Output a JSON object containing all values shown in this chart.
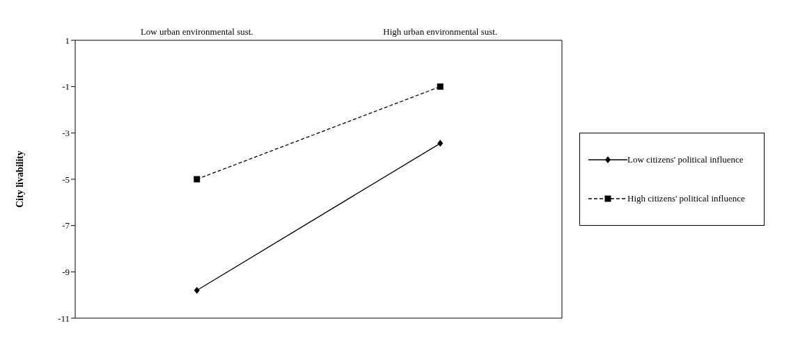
{
  "chart_data": {
    "type": "line",
    "ylabel": "City livability",
    "categories": [
      "Low urban environmental sust.",
      "High urban environmental sust."
    ],
    "series": [
      {
        "name": "Low citizens' political influence",
        "color": "#000000",
        "values": [
          -9.8,
          -3.45
        ],
        "marker": "diamond",
        "line_style": "solid"
      },
      {
        "name": "High citizens' political influence",
        "color": "#000000",
        "values": [
          -5,
          -1
        ],
        "marker": "square",
        "line_style": "dashed"
      }
    ],
    "ylim": [
      -11,
      1
    ],
    "yticks": [
      -11,
      -9,
      -7,
      -5,
      -3,
      -1,
      1
    ],
    "legend": "right"
  }
}
